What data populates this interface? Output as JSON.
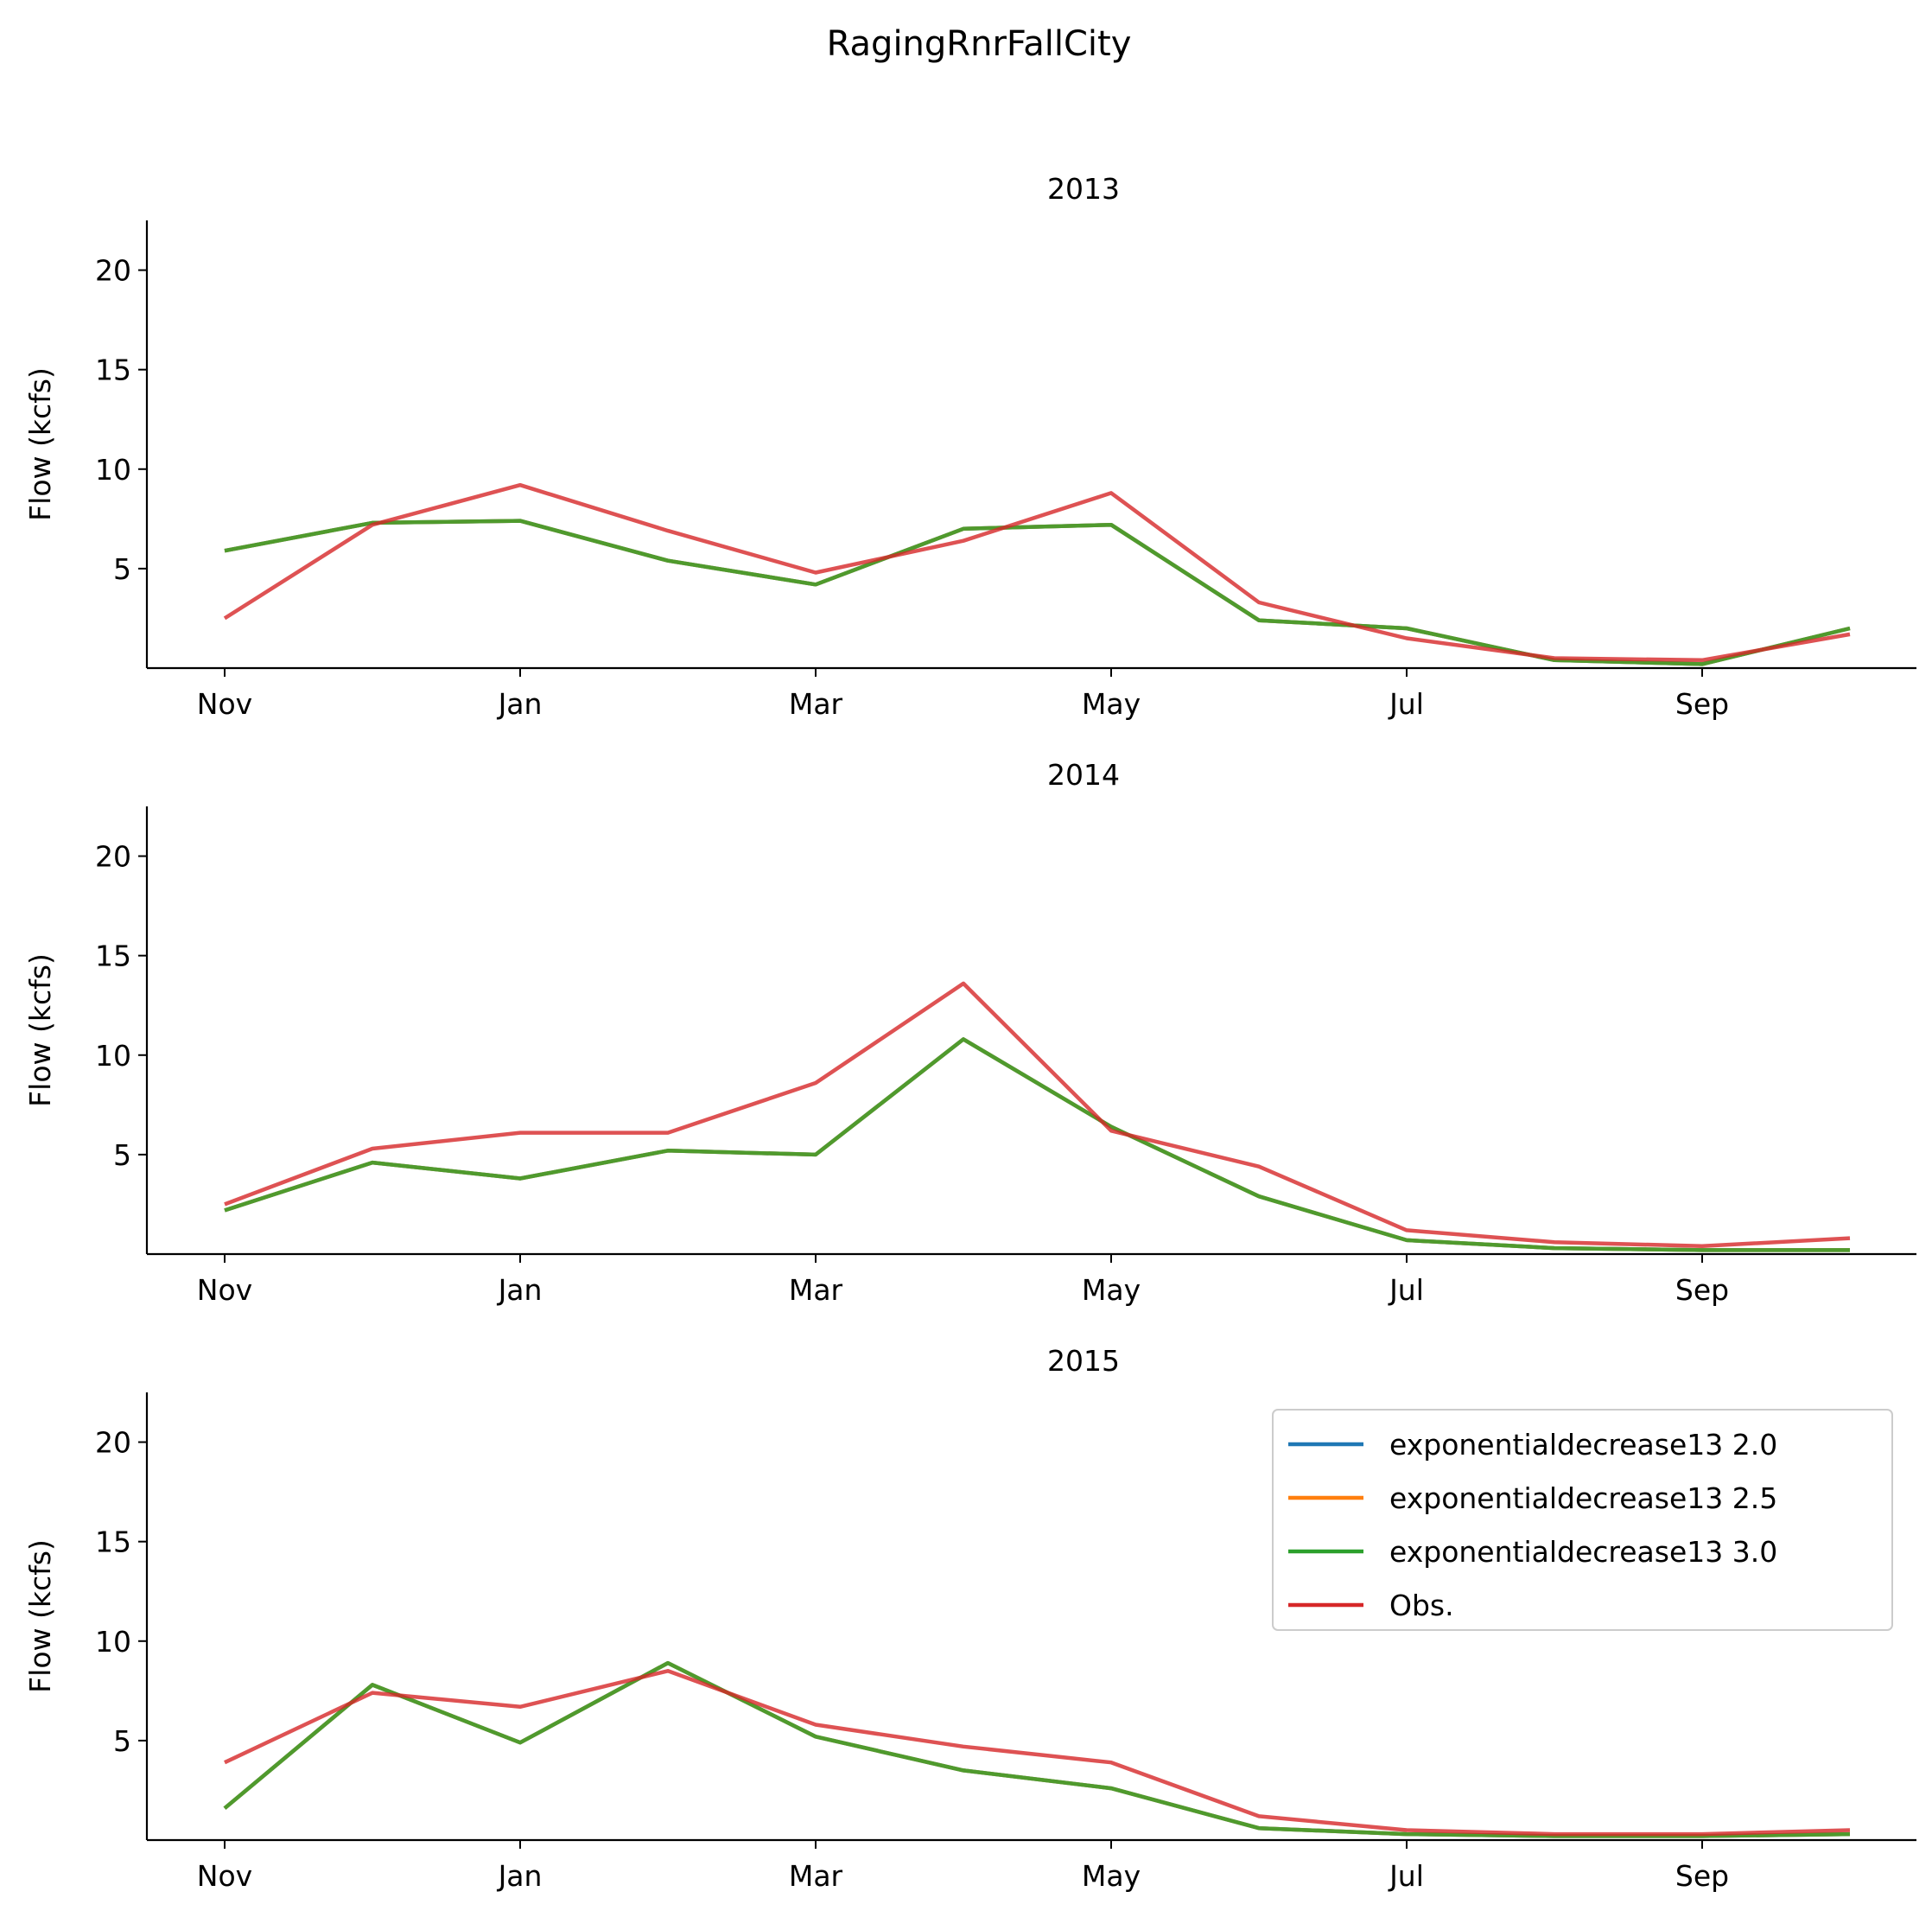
{
  "suptitle": "RagingRnrFallCity",
  "chart_data": {
    "type": "line",
    "ylabel": "Flow (kcfs)",
    "ylim": [
      0,
      22.5
    ],
    "yticks": [
      5,
      10,
      15,
      20
    ],
    "x_ticks": [
      "Nov",
      "Jan",
      "Mar",
      "May",
      "Jul",
      "Sep"
    ],
    "x_tick_months": [
      0,
      2,
      4,
      6,
      8,
      10
    ],
    "x_months": [
      0,
      1,
      2,
      3,
      4,
      5,
      6,
      7,
      8,
      9,
      10,
      11
    ],
    "grid": false,
    "legend_position": "upper right (bottom panel)",
    "legend": [
      {
        "label": "exponentialdecrease13 2.0",
        "color": "#1f77b4"
      },
      {
        "label": "exponentialdecrease13 2.5",
        "color": "#ff7f0e"
      },
      {
        "label": "exponentialdecrease13 3.0",
        "color": "#2ca02c"
      },
      {
        "label": "Obs.",
        "color": "#d62728"
      }
    ],
    "panels": [
      {
        "title": "2013",
        "series": [
          {
            "name": "exponentialdecrease13 2.0",
            "color": "#1f77b4",
            "values": [
              5.9,
              7.3,
              7.4,
              5.4,
              4.2,
              7.0,
              7.2,
              2.4,
              2.0,
              0.4,
              0.2,
              2.0
            ]
          },
          {
            "name": "exponentialdecrease13 2.5",
            "color": "#ff7f0e",
            "values": [
              5.9,
              7.3,
              7.4,
              5.4,
              4.2,
              7.0,
              7.2,
              2.4,
              2.0,
              0.4,
              0.2,
              2.0
            ]
          },
          {
            "name": "exponentialdecrease13 3.0",
            "color": "#2ca02c",
            "values": [
              5.9,
              7.3,
              7.4,
              5.4,
              4.2,
              7.0,
              7.2,
              2.4,
              2.0,
              0.4,
              0.2,
              2.0
            ]
          },
          {
            "name": "Obs.",
            "color": "#d62728",
            "values": [
              2.5,
              7.2,
              9.2,
              6.9,
              4.8,
              6.4,
              8.8,
              3.3,
              1.5,
              0.5,
              0.4,
              1.7
            ]
          }
        ]
      },
      {
        "title": "2014",
        "series": [
          {
            "name": "exponentialdecrease13 2.0",
            "color": "#1f77b4",
            "values": [
              2.2,
              4.6,
              3.8,
              5.2,
              5.0,
              10.8,
              6.4,
              2.9,
              0.7,
              0.3,
              0.2,
              0.2
            ]
          },
          {
            "name": "exponentialdecrease13 2.5",
            "color": "#ff7f0e",
            "values": [
              2.2,
              4.6,
              3.8,
              5.2,
              5.0,
              10.8,
              6.4,
              2.9,
              0.7,
              0.3,
              0.2,
              0.2
            ]
          },
          {
            "name": "exponentialdecrease13 3.0",
            "color": "#2ca02c",
            "values": [
              2.2,
              4.6,
              3.8,
              5.2,
              5.0,
              10.8,
              6.4,
              2.9,
              0.7,
              0.3,
              0.2,
              0.2
            ]
          },
          {
            "name": "Obs.",
            "color": "#d62728",
            "values": [
              2.5,
              5.3,
              6.1,
              6.1,
              8.6,
              13.6,
              6.2,
              4.4,
              1.2,
              0.6,
              0.4,
              0.8
            ]
          }
        ]
      },
      {
        "title": "2015",
        "series": [
          {
            "name": "exponentialdecrease13 2.0",
            "color": "#1f77b4",
            "values": [
              1.6,
              7.8,
              4.9,
              8.9,
              5.2,
              3.5,
              2.6,
              0.6,
              0.3,
              0.2,
              0.2,
              0.3
            ]
          },
          {
            "name": "exponentialdecrease13 2.5",
            "color": "#ff7f0e",
            "values": [
              1.6,
              7.8,
              4.9,
              8.9,
              5.2,
              3.5,
              2.6,
              0.6,
              0.3,
              0.2,
              0.2,
              0.3
            ]
          },
          {
            "name": "exponentialdecrease13 3.0",
            "color": "#2ca02c",
            "values": [
              1.6,
              7.8,
              4.9,
              8.9,
              5.2,
              3.5,
              2.6,
              0.6,
              0.3,
              0.2,
              0.2,
              0.3
            ]
          },
          {
            "name": "Obs.",
            "color": "#d62728",
            "values": [
              3.9,
              7.4,
              6.7,
              8.5,
              5.8,
              4.7,
              3.9,
              1.2,
              0.5,
              0.3,
              0.3,
              0.5
            ]
          }
        ]
      }
    ]
  }
}
